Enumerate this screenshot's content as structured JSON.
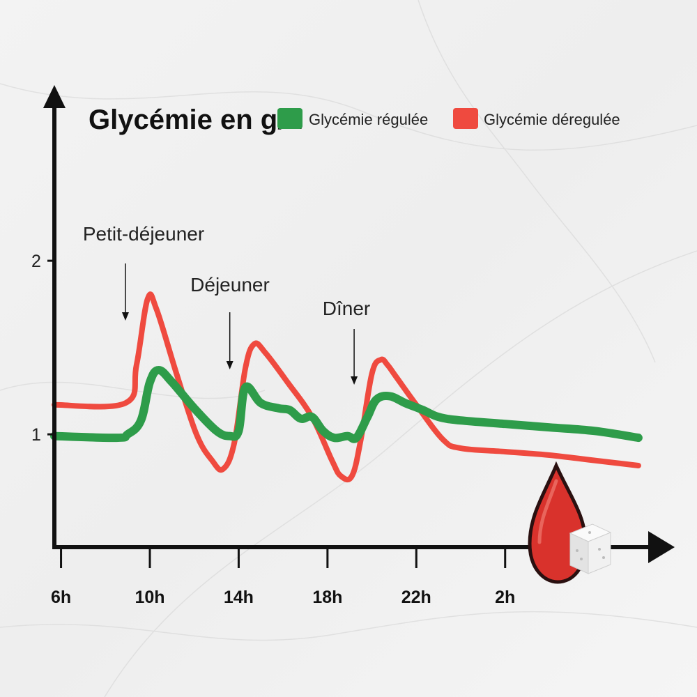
{
  "chart_data": {
    "type": "line",
    "title": "Glycémie en g/L",
    "ylabel": "Glycémie en g/L",
    "xlabel": "",
    "ylim": [
      0.35,
      2.9
    ],
    "xlim": [
      5.7,
      32.6
    ],
    "grid": false,
    "legend_position": "top",
    "x_ticks": [
      {
        "value": 6,
        "label": "6h"
      },
      {
        "value": 10,
        "label": "10h"
      },
      {
        "value": 14,
        "label": "14h"
      },
      {
        "value": 18,
        "label": "18h"
      },
      {
        "value": 22,
        "label": "22h"
      },
      {
        "value": 26,
        "label": "2h"
      }
    ],
    "y_ticks": [
      {
        "value": 1,
        "label": "1"
      },
      {
        "value": 2,
        "label": "2"
      }
    ],
    "series": [
      {
        "name": "Glycémie régulée",
        "color": "#2e9c4a",
        "x": [
          5.7,
          8.5,
          9.0,
          9.6,
          10.0,
          10.4,
          11.0,
          12.0,
          13.0,
          13.6,
          14.0,
          14.3,
          15.0,
          15.8,
          16.3,
          16.8,
          17.3,
          17.8,
          18.3,
          18.9,
          19.3,
          19.8,
          20.2,
          20.8,
          21.5,
          22.3,
          23.0,
          24.0,
          26.0,
          28.0,
          30.0,
          32.0
        ],
        "y": [
          0.99,
          0.98,
          1.0,
          1.08,
          1.3,
          1.37,
          1.3,
          1.15,
          1.02,
          0.99,
          1.02,
          1.27,
          1.18,
          1.15,
          1.14,
          1.09,
          1.1,
          1.02,
          0.98,
          0.99,
          0.98,
          1.1,
          1.2,
          1.22,
          1.18,
          1.14,
          1.1,
          1.08,
          1.06,
          1.04,
          1.02,
          0.98
        ]
      },
      {
        "name": "Glycémie déregulée",
        "color": "#ef4a3f",
        "x": [
          5.7,
          8.9,
          9.4,
          9.9,
          10.3,
          11.2,
          12.1,
          12.8,
          13.3,
          13.8,
          14.3,
          14.7,
          15.2,
          16.2,
          17.3,
          18.2,
          18.6,
          19.1,
          19.5,
          20.0,
          20.4,
          20.7,
          21.1,
          22.0,
          23.2,
          24.0,
          26.0,
          28.0,
          30.0,
          32.0
        ],
        "y": [
          1.17,
          1.18,
          1.4,
          1.78,
          1.72,
          1.35,
          1.0,
          0.85,
          0.8,
          0.95,
          1.38,
          1.52,
          1.47,
          1.3,
          1.1,
          0.85,
          0.76,
          0.76,
          0.97,
          1.35,
          1.43,
          1.4,
          1.33,
          1.17,
          0.97,
          0.92,
          0.9,
          0.88,
          0.85,
          0.82
        ]
      }
    ],
    "annotations": [
      {
        "text": "Petit-déjeuner",
        "x": 8.9
      },
      {
        "text": "Déjeuner",
        "x": 13.6
      },
      {
        "text": "Dîner",
        "x": 19.2
      }
    ]
  }
}
